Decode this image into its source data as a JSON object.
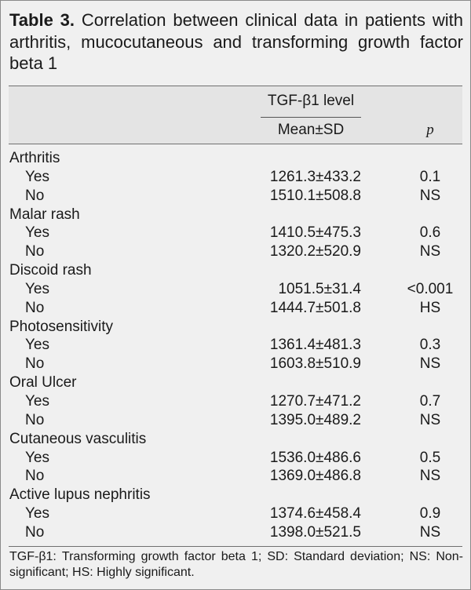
{
  "title": {
    "label": "Table 3.",
    "text": "Correlation between clinical data in patients with arthritis, mucocutaneous and transforming growth factor beta 1"
  },
  "header": {
    "group": "TGF-β1 level",
    "mean": "Mean±SD",
    "p": "p"
  },
  "groups": [
    {
      "name": "Arthritis",
      "rows": [
        {
          "label": "Yes",
          "mean": "1261.3±433.2",
          "p": "0.1"
        },
        {
          "label": "No",
          "mean": "1510.1±508.8",
          "p": "NS"
        }
      ]
    },
    {
      "name": "Malar rash",
      "rows": [
        {
          "label": "Yes",
          "mean": "1410.5±475.3",
          "p": "0.6"
        },
        {
          "label": "No",
          "mean": "1320.2±520.9",
          "p": "NS"
        }
      ]
    },
    {
      "name": "Discoid rash",
      "rows": [
        {
          "label": "Yes",
          "mean": "1051.5±31.4",
          "p": "<0.001"
        },
        {
          "label": "No",
          "mean": "1444.7±501.8",
          "p": "HS"
        }
      ]
    },
    {
      "name": "Photosensitivity",
      "rows": [
        {
          "label": "Yes",
          "mean": "1361.4±481.3",
          "p": "0.3"
        },
        {
          "label": "No",
          "mean": "1603.8±510.9",
          "p": "NS"
        }
      ]
    },
    {
      "name": "Oral Ulcer",
      "rows": [
        {
          "label": "Yes",
          "mean": "1270.7±471.2",
          "p": "0.7"
        },
        {
          "label": "No",
          "mean": "1395.0±489.2",
          "p": "NS"
        }
      ]
    },
    {
      "name": "Cutaneous vasculitis",
      "rows": [
        {
          "label": "Yes",
          "mean": "1536.0±486.6",
          "p": "0.5"
        },
        {
          "label": "No",
          "mean": "1369.0±486.8",
          "p": "NS"
        }
      ]
    },
    {
      "name": "Active lupus nephritis",
      "rows": [
        {
          "label": "Yes",
          "mean": "1374.6±458.4",
          "p": "0.9"
        },
        {
          "label": "No",
          "mean": "1398.0±521.5",
          "p": "NS"
        }
      ]
    }
  ],
  "footnote": "TGF-β1: Transforming growth factor beta 1; SD: Standard deviation; NS: Non-significant; HS: Highly significant."
}
